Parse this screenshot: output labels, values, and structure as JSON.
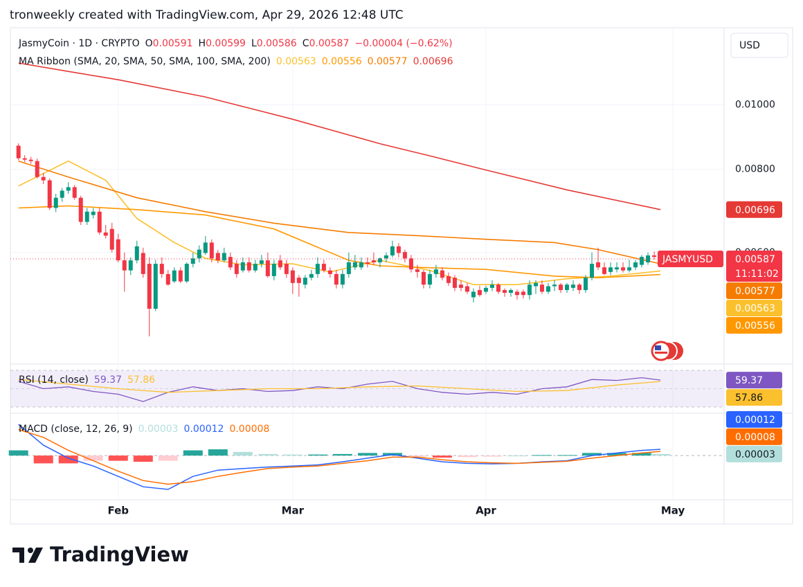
{
  "header": "tronweekly created with TradingView.com, Apr 29, 2026 12:48 UTC",
  "brand": "TradingView",
  "currency": "USD",
  "chart_data": {
    "type": "candlestick",
    "title": "JasmyCoin · 1D · CRYPTO",
    "log": true,
    "grid": true,
    "ohlc_labels": [
      "O",
      "H",
      "L",
      "C"
    ],
    "change_label": "−0.00004 (−0.62%)",
    "symbol_label": "JASMYUSD",
    "countdown": "11:11:02",
    "up_color": "#089981",
    "down_color": "#f23645",
    "ylim": [
      0.00408,
      0.01305
    ],
    "yticks": [
      {
        "value": 0.006,
        "label": "0.00600"
      },
      {
        "value": 0.008,
        "label": "0.00800"
      },
      {
        "value": 0.01,
        "label": "0.01000"
      }
    ],
    "xlim": [
      -1.3,
      113.1
    ],
    "xticks": [
      {
        "value": 16,
        "label": "Feb"
      },
      {
        "value": 44,
        "label": "Mar"
      },
      {
        "value": 75,
        "label": "Apr"
      },
      {
        "value": 105,
        "label": "May"
      }
    ],
    "candles": [
      [
        0.00868,
        0.00875,
        0.00825,
        0.00831
      ],
      [
        0.00831,
        0.0084,
        0.0082,
        0.00827
      ],
      [
        0.00827,
        0.00835,
        0.00815,
        0.00823
      ],
      [
        0.00823,
        0.0083,
        0.00775,
        0.00779
      ],
      [
        0.00779,
        0.0079,
        0.0076,
        0.0077
      ],
      [
        0.0077,
        0.00775,
        0.00695,
        0.007
      ],
      [
        0.007,
        0.00735,
        0.0069,
        0.00725
      ],
      [
        0.00725,
        0.0075,
        0.00715,
        0.00743
      ],
      [
        0.00743,
        0.00765,
        0.00735,
        0.00752
      ],
      [
        0.00752,
        0.00758,
        0.0072,
        0.00725
      ],
      [
        0.00725,
        0.0073,
        0.0066,
        0.00667
      ],
      [
        0.00667,
        0.007,
        0.0066,
        0.00691
      ],
      [
        0.00683,
        0.007,
        0.00675,
        0.00691
      ],
      [
        0.00691,
        0.007,
        0.00638,
        0.00643
      ],
      [
        0.00643,
        0.0066,
        0.0063,
        0.00636
      ],
      [
        0.00651,
        0.00665,
        0.006,
        0.00606
      ],
      [
        0.00628,
        0.0064,
        0.0058,
        0.00584
      ],
      [
        0.00584,
        0.006,
        0.00524,
        0.00564
      ],
      [
        0.00564,
        0.0059,
        0.00555,
        0.00584
      ],
      [
        0.00584,
        0.00625,
        0.00578,
        0.00613
      ],
      [
        0.00599,
        0.0061,
        0.0055,
        0.00557
      ],
      [
        0.00577,
        0.0059,
        0.00449,
        0.00494
      ],
      [
        0.00494,
        0.00585,
        0.0049,
        0.00577
      ],
      [
        0.00577,
        0.0059,
        0.0055,
        0.00557
      ],
      [
        0.00557,
        0.00565,
        0.00535,
        0.00537
      ],
      [
        0.00543,
        0.0057,
        0.0054,
        0.00564
      ],
      [
        0.00564,
        0.0057,
        0.0054,
        0.00543
      ],
      [
        0.00543,
        0.0058,
        0.0054,
        0.00577
      ],
      [
        0.00577,
        0.006,
        0.0057,
        0.00588
      ],
      [
        0.00588,
        0.00615,
        0.0058,
        0.00606
      ],
      [
        0.00599,
        0.00635,
        0.00595,
        0.00621
      ],
      [
        0.00621,
        0.00628,
        0.0058,
        0.00588
      ],
      [
        0.00599,
        0.00605,
        0.00578,
        0.00584
      ],
      [
        0.00584,
        0.0061,
        0.0058,
        0.00599
      ],
      [
        0.00591,
        0.006,
        0.00565,
        0.0057
      ],
      [
        0.00577,
        0.00585,
        0.0055,
        0.00557
      ],
      [
        0.00564,
        0.0059,
        0.0056,
        0.0058
      ],
      [
        0.0058,
        0.0059,
        0.0056,
        0.00564
      ],
      [
        0.00564,
        0.00585,
        0.0056,
        0.00577
      ],
      [
        0.00577,
        0.00595,
        0.0057,
        0.00584
      ],
      [
        0.00584,
        0.006,
        0.0055,
        0.00553
      ],
      [
        0.00553,
        0.00585,
        0.00545,
        0.00577
      ],
      [
        0.00584,
        0.00595,
        0.00565,
        0.0057
      ],
      [
        0.00577,
        0.00585,
        0.0055,
        0.00557
      ],
      [
        0.00564,
        0.0057,
        0.0052,
        0.0054
      ],
      [
        0.0055,
        0.00555,
        0.00515,
        0.0054
      ],
      [
        0.00537,
        0.00555,
        0.0053,
        0.0055
      ],
      [
        0.0055,
        0.00565,
        0.00545,
        0.00557
      ],
      [
        0.00557,
        0.0059,
        0.0055,
        0.00577
      ],
      [
        0.00577,
        0.00585,
        0.0056,
        0.00564
      ],
      [
        0.00564,
        0.0057,
        0.0055,
        0.00557
      ],
      [
        0.00557,
        0.00565,
        0.0053,
        0.00537
      ],
      [
        0.00537,
        0.00565,
        0.0053,
        0.00557
      ],
      [
        0.00557,
        0.006,
        0.0055,
        0.0058
      ],
      [
        0.0057,
        0.00595,
        0.00565,
        0.0058
      ],
      [
        0.0057,
        0.0059,
        0.00565,
        0.0058
      ],
      [
        0.0058,
        0.0059,
        0.0057,
        0.00577
      ],
      [
        0.00584,
        0.006,
        0.00575,
        0.0058
      ],
      [
        0.0058,
        0.0059,
        0.0057,
        0.00588
      ],
      [
        0.00588,
        0.006,
        0.0058,
        0.00594
      ],
      [
        0.00594,
        0.00625,
        0.0059,
        0.00613
      ],
      [
        0.00613,
        0.0062,
        0.0059,
        0.00599
      ],
      [
        0.00601,
        0.00606,
        0.0058,
        0.00588
      ],
      [
        0.00588,
        0.00595,
        0.0056,
        0.00566
      ],
      [
        0.00566,
        0.00575,
        0.0055,
        0.00561
      ],
      [
        0.00561,
        0.00565,
        0.0053,
        0.00537
      ],
      [
        0.00537,
        0.00565,
        0.0053,
        0.00557
      ],
      [
        0.00557,
        0.00575,
        0.0055,
        0.00566
      ],
      [
        0.00564,
        0.0057,
        0.00545,
        0.0055
      ],
      [
        0.00553,
        0.0056,
        0.00535,
        0.0054
      ],
      [
        0.0055,
        0.00555,
        0.00525,
        0.00531
      ],
      [
        0.00537,
        0.00545,
        0.00525,
        0.00531
      ],
      [
        0.00534,
        0.0054,
        0.0052,
        0.00524
      ],
      [
        0.00514,
        0.0053,
        0.00505,
        0.00524
      ],
      [
        0.00527,
        0.00535,
        0.00515,
        0.00518
      ],
      [
        0.00524,
        0.00535,
        0.0052,
        0.00531
      ],
      [
        0.00531,
        0.00545,
        0.00525,
        0.00537
      ],
      [
        0.00537,
        0.0054,
        0.0052,
        0.00524
      ],
      [
        0.00527,
        0.0053,
        0.00515,
        0.00522
      ],
      [
        0.00522,
        0.0053,
        0.00515,
        0.00527
      ],
      [
        0.00524,
        0.00528,
        0.0051,
        0.00518
      ],
      [
        0.00524,
        0.00528,
        0.00512,
        0.00518
      ],
      [
        0.00518,
        0.00545,
        0.0051,
        0.00537
      ],
      [
        0.00534,
        0.00545,
        0.0052,
        0.0054
      ],
      [
        0.00537,
        0.00545,
        0.0052,
        0.00524
      ],
      [
        0.00524,
        0.0054,
        0.0052,
        0.00534
      ],
      [
        0.00534,
        0.00545,
        0.00525,
        0.00537
      ],
      [
        0.00537,
        0.0054,
        0.00522,
        0.00527
      ],
      [
        0.00527,
        0.0054,
        0.00522,
        0.00537
      ],
      [
        0.00531,
        0.00545,
        0.00525,
        0.00537
      ],
      [
        0.00537,
        0.0054,
        0.0052,
        0.00527
      ],
      [
        0.00527,
        0.00555,
        0.00522,
        0.0055
      ],
      [
        0.0055,
        0.006,
        0.00545,
        0.00577
      ],
      [
        0.0058,
        0.0061,
        0.00565,
        0.0057
      ],
      [
        0.0057,
        0.0058,
        0.00555,
        0.00557
      ],
      [
        0.00561,
        0.0058,
        0.00555,
        0.0057
      ],
      [
        0.00566,
        0.0058,
        0.0056,
        0.0057
      ],
      [
        0.0057,
        0.0058,
        0.0056,
        0.00564
      ],
      [
        0.00564,
        0.00585,
        0.0056,
        0.0057
      ],
      [
        0.0057,
        0.00585,
        0.00565,
        0.0058
      ],
      [
        0.00575,
        0.00595,
        0.0057,
        0.00591
      ],
      [
        0.0058,
        0.006,
        0.00575,
        0.00594
      ],
      [
        0.00594,
        0.00602,
        0.00585,
        0.00591
      ],
      [
        0.00591,
        0.00599,
        0.00586,
        0.00587
      ]
    ],
    "ma_title": "MA Ribbon (SMA, 20, SMA, 50, SMA, 100, SMA, 200)",
    "ma_series": [
      {
        "color": "#fbc02d",
        "x": [
          0,
          8,
          14,
          19,
          25,
          30,
          36,
          44,
          50,
          58,
          66,
          73,
          80,
          88,
          95,
          103
        ],
        "values": [
          0.00755,
          0.00823,
          0.0077,
          0.00675,
          0.00621,
          0.00588,
          0.00575,
          0.00577,
          0.00561,
          0.00584,
          0.00564,
          0.00537,
          0.00537,
          0.00548,
          0.00553,
          0.00563
        ]
      },
      {
        "color": "#ff9800",
        "x": [
          0,
          8,
          19,
          30,
          41,
          53,
          58,
          64,
          75,
          86,
          93,
          103
        ],
        "values": [
          0.007,
          0.00705,
          0.00696,
          0.00683,
          0.00651,
          0.00584,
          0.00573,
          0.0057,
          0.00566,
          0.00553,
          0.0055,
          0.00556
        ]
      },
      {
        "color": "#f57c00",
        "x": [
          0,
          8,
          19,
          30,
          41,
          53,
          64,
          75,
          86,
          93,
          103
        ],
        "values": [
          0.00823,
          0.00779,
          0.00725,
          0.00691,
          0.00664,
          0.00643,
          0.00636,
          0.00628,
          0.00621,
          0.00606,
          0.00577
        ]
      },
      {
        "color": "#e53935",
        "x": [
          0,
          8,
          16,
          30,
          44,
          58,
          66,
          75,
          88,
          103
        ],
        "values": [
          0.01155,
          0.01122,
          0.0109,
          0.01027,
          0.00951,
          0.00874,
          0.00838,
          0.00798,
          0.00745,
          0.00696
        ]
      }
    ],
    "rsi": {
      "title": "RSI (14, close)",
      "ylim": [
        24,
        76
      ],
      "levels": [
        70,
        50,
        30
      ],
      "series": [
        {
          "color": "#7e57c2",
          "x": [
            0,
            4,
            8,
            12,
            16,
            20,
            24,
            28,
            32,
            36,
            40,
            44,
            48,
            52,
            56,
            60,
            64,
            68,
            72,
            76,
            80,
            84,
            88,
            92,
            96,
            100,
            103
          ],
          "values": [
            58,
            50,
            52,
            47,
            44,
            36,
            46,
            52,
            48,
            50,
            47,
            48,
            52,
            50,
            55,
            58,
            50,
            46,
            44,
            46,
            44,
            50,
            52,
            60,
            59,
            62,
            59.37
          ]
        },
        {
          "color": "#fbc02d",
          "x": [
            0,
            8,
            16,
            24,
            32,
            40,
            48,
            56,
            64,
            72,
            80,
            88,
            96,
            103
          ],
          "values": [
            60,
            55,
            50,
            46,
            48,
            50,
            50,
            52,
            53,
            50,
            47,
            48,
            54,
            57.86
          ]
        }
      ]
    },
    "macd": {
      "title": "MACD (close, 12, 26, 9)",
      "ylim": [
        -0.00085,
        0.0008
      ],
      "histogram": {
        "colors": [
          "#26a69a",
          "#b2dfdb",
          "#ff5252",
          "#ffcdd2"
        ],
        "x": [
          0,
          4,
          8,
          12,
          16,
          20,
          24,
          28,
          32,
          36,
          40,
          44,
          48,
          52,
          56,
          60,
          64,
          68,
          72,
          76,
          80,
          84,
          88,
          92,
          96,
          100,
          103
        ],
        "values": [
          0.0001,
          -0.00015,
          -0.00015,
          -0.0001,
          -0.0001,
          -0.00012,
          -0.0001,
          0.0001,
          0.00012,
          7e-05,
          3e-05,
          2e-05,
          2e-05,
          3e-05,
          5e-05,
          5e-05,
          -2e-05,
          -4e-05,
          -3e-05,
          -2e-05,
          0,
          1e-05,
          1e-05,
          5e-05,
          5e-05,
          5e-05,
          3e-05
        ]
      },
      "series": [
        {
          "color": "#2962ff",
          "x": [
            0,
            4,
            8,
            12,
            16,
            20,
            24,
            28,
            32,
            36,
            40,
            44,
            48,
            52,
            56,
            60,
            64,
            68,
            72,
            76,
            80,
            84,
            88,
            92,
            96,
            100,
            103
          ],
          "values": [
            0.0006,
            0.0002,
            -5e-05,
            -0.0002,
            -0.0004,
            -0.0006,
            -0.00065,
            -0.0004,
            -0.00028,
            -0.00025,
            -0.00022,
            -0.0002,
            -0.00018,
            -0.00012,
            -5e-05,
            2e-05,
            -5e-05,
            -0.00012,
            -0.00015,
            -0.00016,
            -0.00015,
            -0.00012,
            -0.0001,
            0,
            5e-05,
            0.0001,
            0.00012
          ]
        },
        {
          "color": "#ff6d00",
          "x": [
            0,
            4,
            8,
            12,
            16,
            20,
            24,
            28,
            32,
            36,
            40,
            44,
            48,
            52,
            56,
            60,
            64,
            68,
            72,
            76,
            80,
            84,
            88,
            92,
            96,
            100,
            103
          ],
          "values": [
            0.0005,
            0.00035,
            0.0001,
            -0.0001,
            -0.0003,
            -0.00048,
            -0.00055,
            -0.0005,
            -0.0004,
            -0.00032,
            -0.00025,
            -0.00022,
            -0.0002,
            -0.00015,
            -0.0001,
            -3e-05,
            -3e-05,
            -8e-05,
            -0.00012,
            -0.00014,
            -0.00015,
            -0.00013,
            -0.00011,
            -5e-05,
            0,
            5e-05,
            8e-05
          ]
        }
      ]
    }
  }
}
